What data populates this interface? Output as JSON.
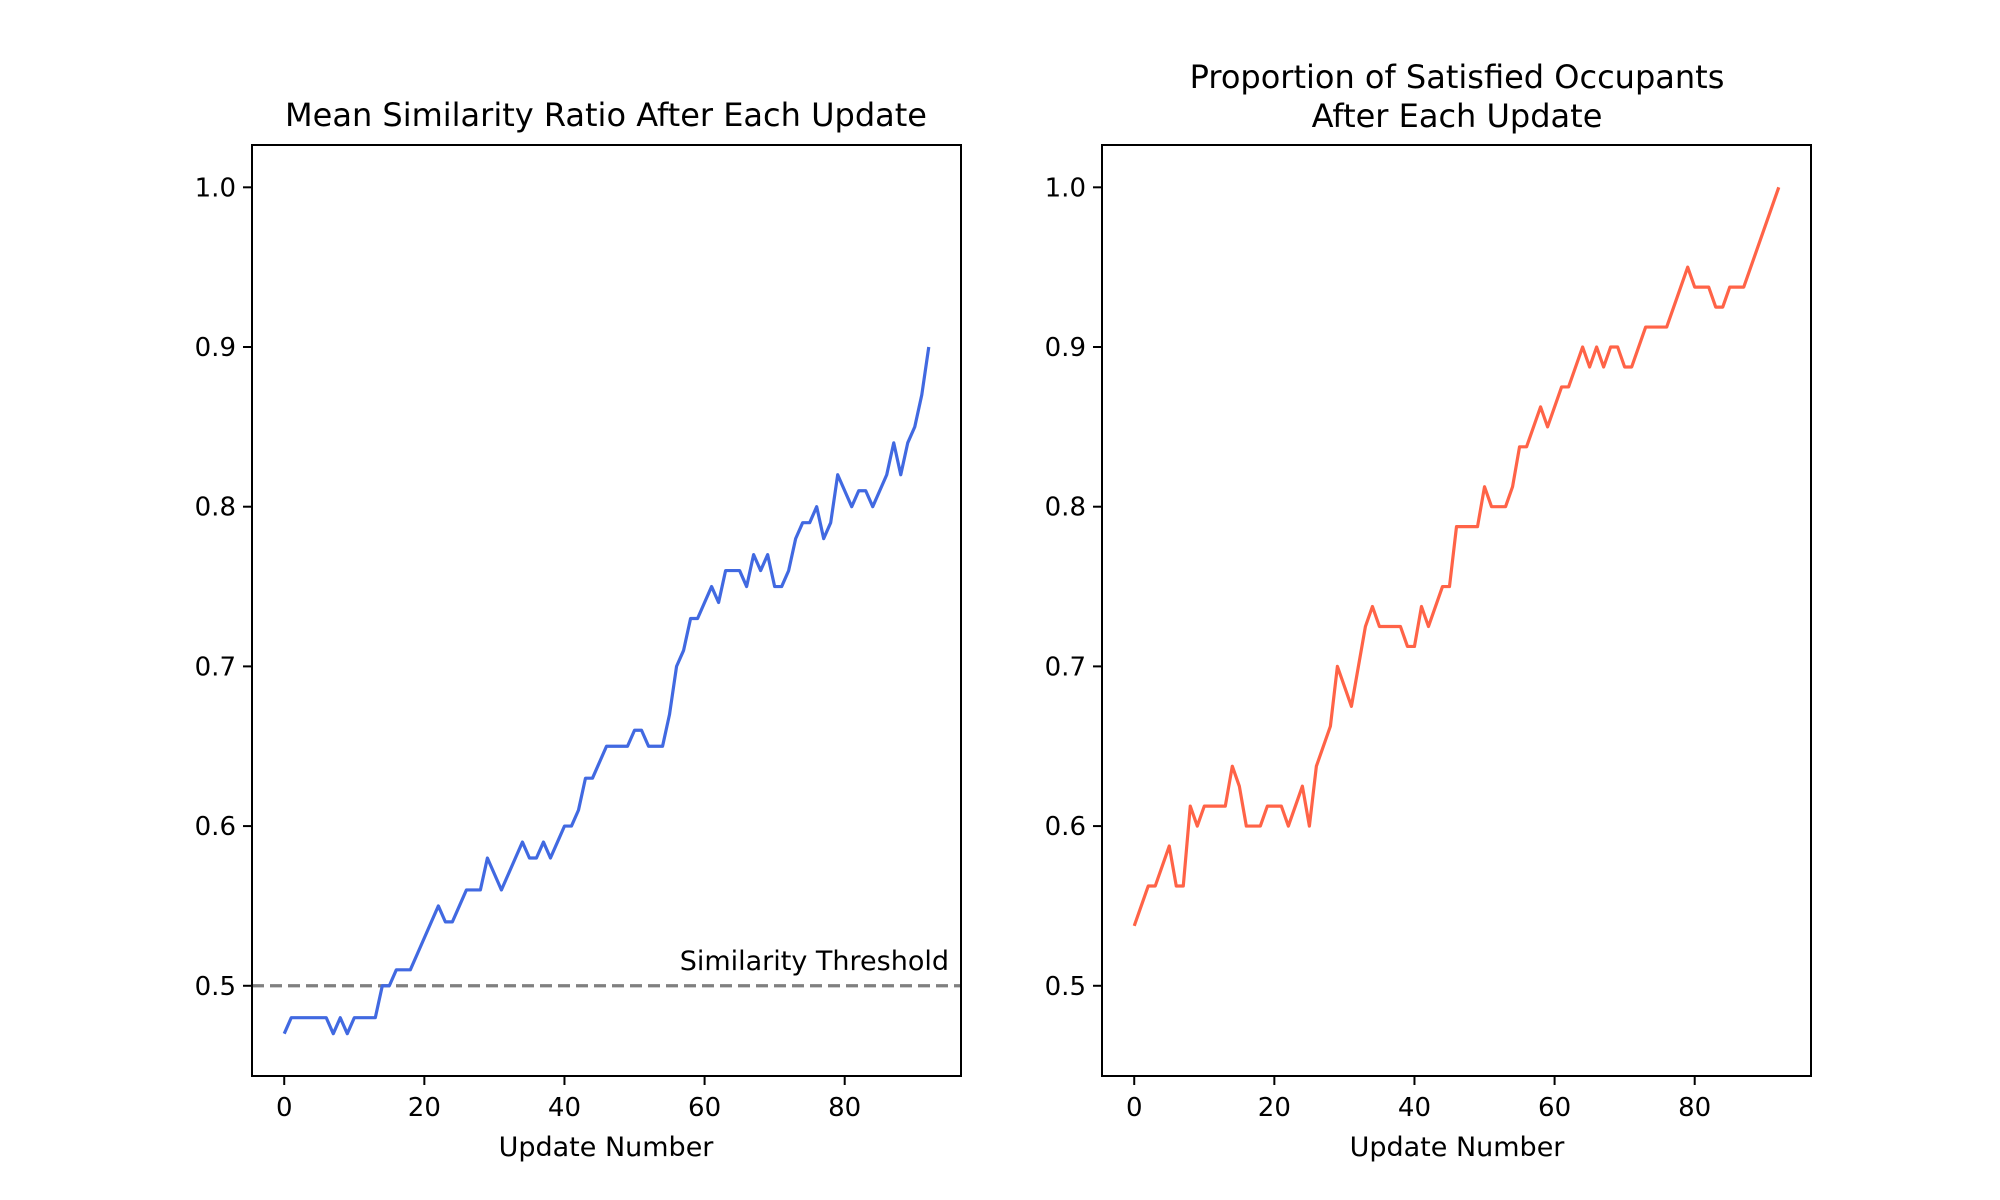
{
  "chart_data": [
    {
      "type": "line",
      "title": "Mean Similarity Ratio After Each Update",
      "xlabel": "Update Number",
      "ylabel": "",
      "xlim": [
        -4.6,
        96.6
      ],
      "ylim": [
        0.4435,
        1.0265
      ],
      "x_ticks": [
        0,
        20,
        40,
        60,
        80
      ],
      "y_ticks": [
        0.5,
        0.6,
        0.7,
        0.8,
        0.9,
        1.0
      ],
      "x_tick_labels": [
        "0",
        "20",
        "40",
        "60",
        "80"
      ],
      "y_tick_labels": [
        "0.5",
        "0.6",
        "0.7",
        "0.8",
        "0.9",
        "1.0"
      ],
      "grid": false,
      "series": [
        {
          "color": "#4169e1",
          "values": [
            0.47,
            0.48,
            0.48,
            0.48,
            0.48,
            0.48,
            0.48,
            0.47,
            0.48,
            0.47,
            0.48,
            0.48,
            0.48,
            0.48,
            0.5,
            0.5,
            0.51,
            0.51,
            0.51,
            0.52,
            0.53,
            0.54,
            0.55,
            0.54,
            0.54,
            0.55,
            0.56,
            0.56,
            0.56,
            0.58,
            0.57,
            0.56,
            0.57,
            0.58,
            0.59,
            0.58,
            0.58,
            0.59,
            0.58,
            0.59,
            0.6,
            0.6,
            0.61,
            0.63,
            0.63,
            0.64,
            0.65,
            0.65,
            0.65,
            0.65,
            0.66,
            0.66,
            0.65,
            0.65,
            0.65,
            0.67,
            0.7,
            0.71,
            0.73,
            0.73,
            0.74,
            0.75,
            0.74,
            0.76,
            0.76,
            0.76,
            0.75,
            0.77,
            0.76,
            0.77,
            0.75,
            0.75,
            0.76,
            0.78,
            0.79,
            0.79,
            0.8,
            0.78,
            0.79,
            0.82,
            0.81,
            0.8,
            0.81,
            0.81,
            0.8,
            0.81,
            0.82,
            0.84,
            0.82,
            0.84,
            0.85,
            0.87,
            0.9
          ]
        }
      ],
      "reference_line": {
        "y": 0.5,
        "label": "Similarity Threshold",
        "color": "#808080",
        "style": "dashed"
      }
    },
    {
      "type": "line",
      "title_lines": [
        "Proportion of Satisfied Occupants",
        "After Each Update"
      ],
      "xlabel": "Update Number",
      "ylabel": "",
      "xlim": [
        -4.6,
        96.6
      ],
      "ylim": [
        0.4435,
        1.0265
      ],
      "x_ticks": [
        0,
        20,
        40,
        60,
        80
      ],
      "y_ticks": [
        0.5,
        0.6,
        0.7,
        0.8,
        0.9,
        1.0
      ],
      "x_tick_labels": [
        "0",
        "20",
        "40",
        "60",
        "80"
      ],
      "y_tick_labels": [
        "0.5",
        "0.6",
        "0.7",
        "0.8",
        "0.9",
        "1.0"
      ],
      "grid": false,
      "series": [
        {
          "color": "#ff6347",
          "points": [
            [
              0,
              0.5375
            ],
            [
              2,
              0.5625
            ],
            [
              3,
              0.5625
            ],
            [
              5,
              0.5875
            ],
            [
              6,
              0.5625
            ],
            [
              7,
              0.5625
            ],
            [
              8,
              0.6125
            ],
            [
              9,
              0.6
            ],
            [
              10,
              0.6125
            ],
            [
              13,
              0.6125
            ],
            [
              14,
              0.6375
            ],
            [
              15,
              0.625
            ],
            [
              16,
              0.6
            ],
            [
              18,
              0.6
            ],
            [
              19,
              0.6125
            ],
            [
              21,
              0.6125
            ],
            [
              22,
              0.6
            ],
            [
              24,
              0.625
            ],
            [
              25,
              0.6
            ],
            [
              26,
              0.6375
            ],
            [
              28,
              0.6625
            ],
            [
              29,
              0.7
            ],
            [
              31,
              0.675
            ],
            [
              33,
              0.725
            ],
            [
              34,
              0.7375
            ],
            [
              35,
              0.725
            ],
            [
              38,
              0.725
            ],
            [
              39,
              0.7125
            ],
            [
              40,
              0.7125
            ],
            [
              41,
              0.7375
            ],
            [
              42,
              0.725
            ],
            [
              44,
              0.75
            ],
            [
              45,
              0.75
            ],
            [
              46,
              0.7875
            ],
            [
              49,
              0.7875
            ],
            [
              50,
              0.8125
            ],
            [
              51,
              0.8
            ],
            [
              53,
              0.8
            ],
            [
              54,
              0.8125
            ],
            [
              55,
              0.8375
            ],
            [
              56,
              0.8375
            ],
            [
              58,
              0.8625
            ],
            [
              59,
              0.85
            ],
            [
              61,
              0.875
            ],
            [
              62,
              0.875
            ],
            [
              64,
              0.9
            ],
            [
              65,
              0.8875
            ],
            [
              66,
              0.9
            ],
            [
              67,
              0.8875
            ],
            [
              68,
              0.9
            ],
            [
              69,
              0.9
            ],
            [
              70,
              0.8875
            ],
            [
              71,
              0.8875
            ],
            [
              73,
              0.9125
            ],
            [
              76,
              0.9125
            ],
            [
              79,
              0.95
            ],
            [
              80,
              0.9375
            ],
            [
              82,
              0.9375
            ],
            [
              83,
              0.925
            ],
            [
              84,
              0.925
            ],
            [
              85,
              0.9375
            ],
            [
              87,
              0.9375
            ],
            [
              92,
              1.0
            ]
          ]
        }
      ]
    }
  ]
}
